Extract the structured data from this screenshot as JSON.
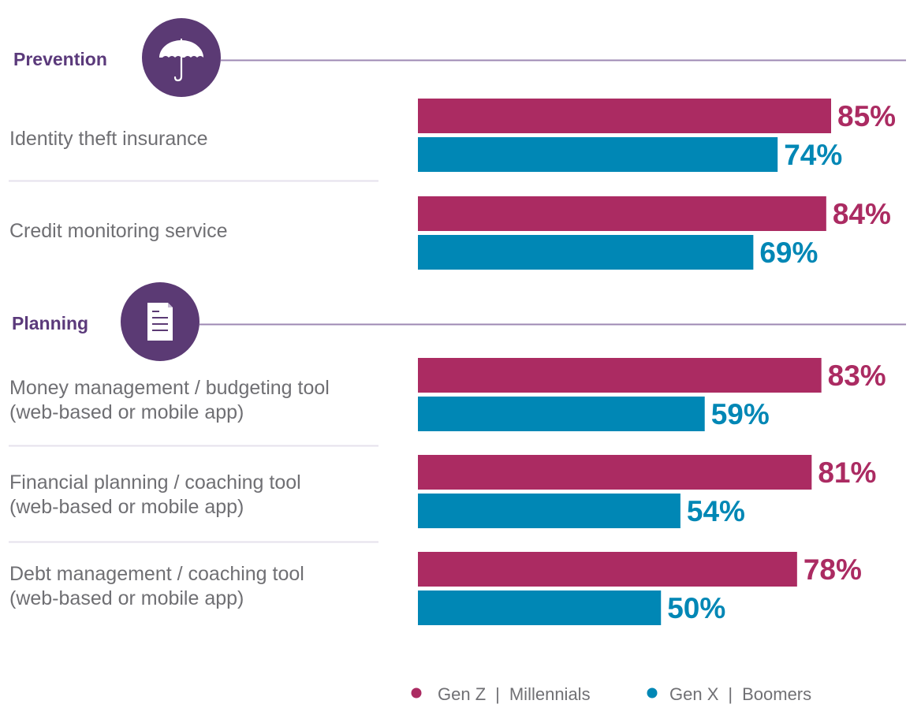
{
  "chart_data": {
    "type": "bar",
    "orientation": "horizontal",
    "title": "",
    "xlabel": "",
    "ylabel": "",
    "xlim": [
      0,
      100
    ],
    "grid": false,
    "value_format": "{v}%",
    "legend_position": "bottom-right",
    "series": [
      {
        "name": "Gen Z | Millennials",
        "color": "#ab2b62",
        "values": [
          85,
          84,
          83,
          81,
          78
        ]
      },
      {
        "name": "Gen X | Boomers",
        "color": "#0087b5",
        "values": [
          74,
          69,
          59,
          54,
          50
        ]
      }
    ],
    "groups": [
      {
        "title": "Prevention",
        "icon": "umbrella-icon",
        "categories": [
          {
            "label_lines": [
              "Identity theft insurance"
            ],
            "index": 0
          },
          {
            "label_lines": [
              "Credit monitoring service"
            ],
            "index": 1
          }
        ]
      },
      {
        "title": "Planning",
        "icon": "document-icon",
        "categories": [
          {
            "label_lines": [
              "Money management / budgeting tool",
              "(web-based or mobile app)"
            ],
            "index": 2
          },
          {
            "label_lines": [
              "Financial planning / coaching tool",
              "(web-based or mobile app)"
            ],
            "index": 3
          },
          {
            "label_lines": [
              "Debt management / coaching tool",
              "(web-based or mobile app)"
            ],
            "index": 4
          }
        ]
      }
    ],
    "categories": [
      "Identity theft insurance",
      "Credit monitoring service",
      "Money management / budgeting tool (web-based or mobile app)",
      "Financial planning / coaching tool (web-based or mobile app)",
      "Debt management / coaching tool (web-based or mobile app)"
    ],
    "legend": [
      {
        "label_left": "Gen Z",
        "label_right": "Millennials",
        "color": "#ab2b62"
      },
      {
        "label_left": "Gen X",
        "label_right": "Boomers",
        "color": "#0087b5"
      }
    ]
  },
  "theme": {
    "section_color": "#5b3a7b",
    "section_line_color": "#9d88b3",
    "divider_color": "#e6e1ec"
  }
}
